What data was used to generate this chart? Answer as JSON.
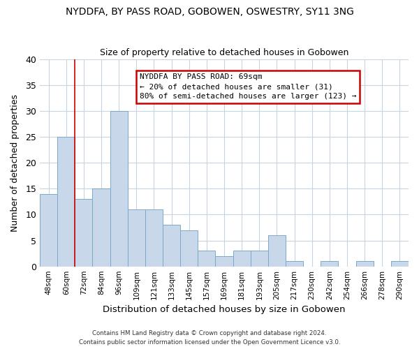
{
  "title": "NYDDFA, BY PASS ROAD, GOBOWEN, OSWESTRY, SY11 3NG",
  "subtitle": "Size of property relative to detached houses in Gobowen",
  "xlabel": "Distribution of detached houses by size in Gobowen",
  "ylabel": "Number of detached properties",
  "bar_color": "#c8d8ea",
  "bar_edge_color": "#7aaac8",
  "categories": [
    "48sqm",
    "60sqm",
    "72sqm",
    "84sqm",
    "96sqm",
    "109sqm",
    "121sqm",
    "133sqm",
    "145sqm",
    "157sqm",
    "169sqm",
    "181sqm",
    "193sqm",
    "205sqm",
    "217sqm",
    "230sqm",
    "242sqm",
    "254sqm",
    "266sqm",
    "278sqm",
    "290sqm"
  ],
  "values": [
    14,
    25,
    13,
    15,
    30,
    11,
    11,
    8,
    7,
    3,
    2,
    3,
    3,
    6,
    1,
    0,
    1,
    0,
    1,
    0,
    1
  ],
  "ylim": [
    0,
    40
  ],
  "yticks": [
    0,
    5,
    10,
    15,
    20,
    25,
    30,
    35,
    40
  ],
  "vline_color": "#cc0000",
  "annotation_title": "NYDDFA BY PASS ROAD: 69sqm",
  "annotation_line1": "← 20% of detached houses are smaller (31)",
  "annotation_line2": "80% of semi-detached houses are larger (123) →",
  "annotation_box_color": "#ffffff",
  "annotation_box_edge": "#cc0000",
  "footer1": "Contains HM Land Registry data © Crown copyright and database right 2024.",
  "footer2": "Contains public sector information licensed under the Open Government Licence v3.0.",
  "background_color": "#ffffff",
  "grid_color": "#c8d4e0"
}
